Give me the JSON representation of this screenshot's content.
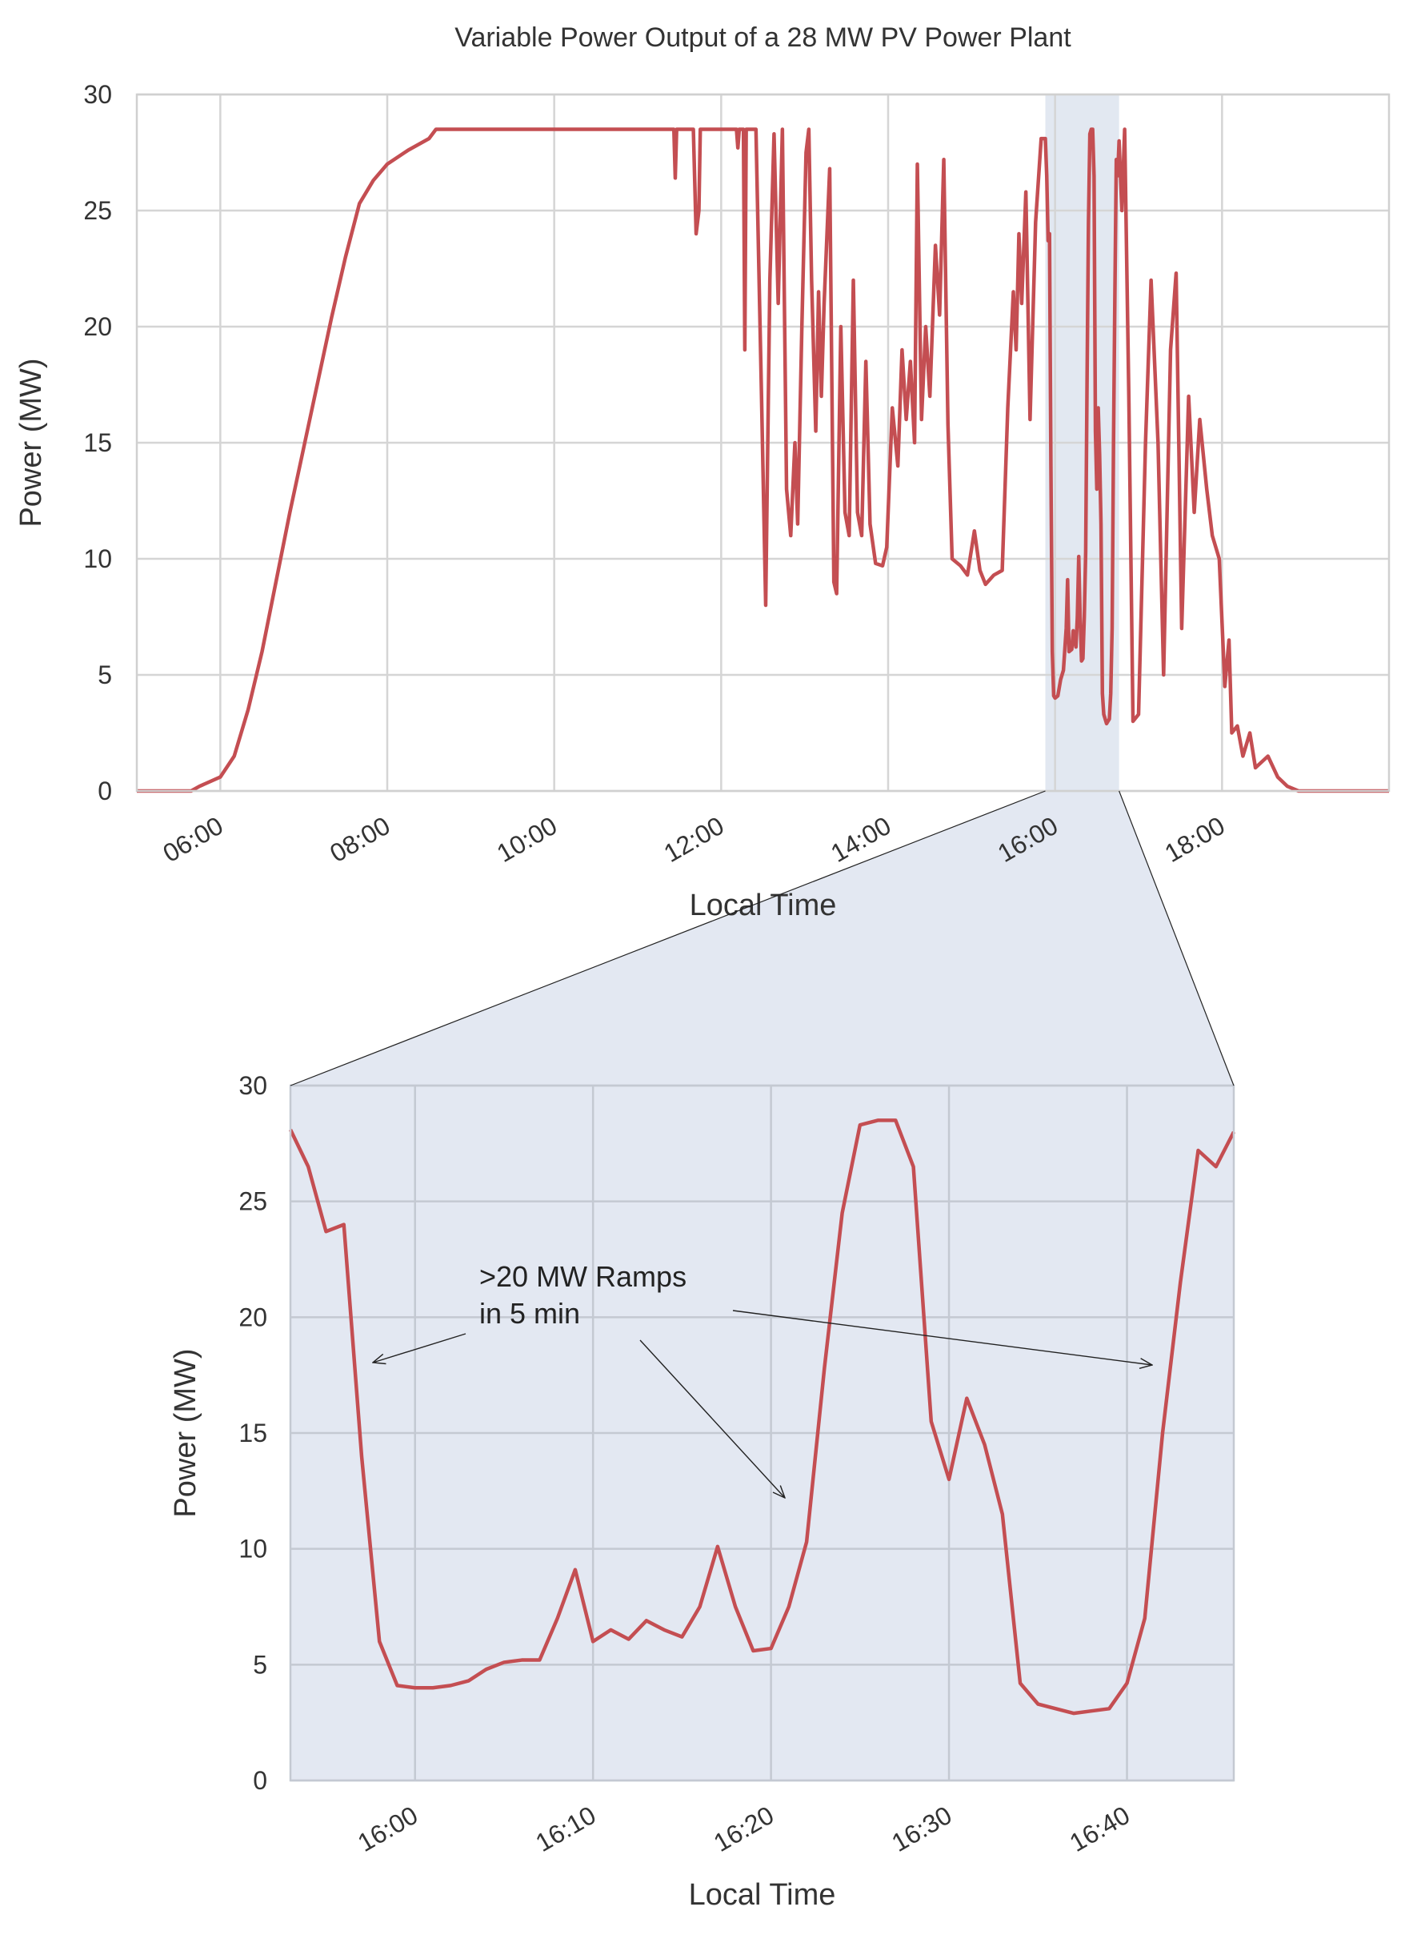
{
  "chart_data": [
    {
      "type": "line",
      "title": "Variable Power Output of a 28 MW PV Power Plant",
      "xlabel": "Local Time",
      "ylabel": "Power (MW)",
      "xlim": [
        "05:00",
        "20:00"
      ],
      "xticks": [
        "06:00",
        "08:00",
        "10:00",
        "12:00",
        "14:00",
        "16:00",
        "18:00"
      ],
      "ylim": [
        0,
        30
      ],
      "yticks": [
        0,
        5,
        10,
        15,
        20,
        25,
        30
      ],
      "grid": true,
      "color": "#c44e52",
      "x": [
        "05:00",
        "05:39",
        "05:45",
        "06:00",
        "06:10",
        "06:20",
        "06:30",
        "06:40",
        "06:50",
        "07:00",
        "07:10",
        "07:20",
        "07:30",
        "07:40",
        "07:50",
        "08:00",
        "08:15",
        "08:30",
        "08:35",
        "11:26",
        "11:27",
        "11:28",
        "11:40",
        "11:42",
        "11:44",
        "11:45",
        "12:11",
        "12:12",
        "12:13",
        "12:16",
        "12:17",
        "12:18",
        "12:25",
        "12:29",
        "12:32",
        "12:35",
        "12:38",
        "12:41",
        "12:44",
        "12:47",
        "12:50",
        "12:53",
        "12:55",
        "12:58",
        "13:01",
        "13:03",
        "13:05",
        "13:08",
        "13:10",
        "13:12",
        "13:14",
        "13:18",
        "13:21",
        "13:23",
        "13:26",
        "13:29",
        "13:32",
        "13:35",
        "13:38",
        "13:41",
        "13:44",
        "13:47",
        "13:51",
        "13:56",
        "13:59",
        "14:03",
        "14:07",
        "14:10",
        "14:13",
        "14:16",
        "14:19",
        "14:21",
        "14:24",
        "14:27",
        "14:30",
        "14:34",
        "14:37",
        "14:40",
        "14:43",
        "14:46",
        "14:52",
        "14:57",
        "15:02",
        "15:06",
        "15:10",
        "15:16",
        "15:22",
        "15:26",
        "15:30",
        "15:32",
        "15:34",
        "15:36",
        "15:39",
        "15:42",
        "15:46",
        "15:50",
        "15:53",
        "15:54",
        "15:55",
        "15:56",
        "15:57",
        "15:58",
        "15:59",
        "16:00",
        "16:02",
        "16:04",
        "16:06",
        "16:08",
        "16:09",
        "16:10",
        "16:12",
        "16:13",
        "16:15",
        "16:16",
        "16:17",
        "16:18",
        "16:19",
        "16:20",
        "16:21",
        "16:22",
        "16:23",
        "16:24",
        "16:25",
        "16:26",
        "16:27",
        "16:28",
        "16:29",
        "16:30",
        "16:31",
        "16:32",
        "16:33",
        "16:34",
        "16:35",
        "16:37",
        "16:39",
        "16:40",
        "16:41",
        "16:42",
        "16:43",
        "16:44",
        "16:45",
        "16:46",
        "16:48",
        "16:50",
        "16:53",
        "16:56",
        "17:00",
        "17:05",
        "17:09",
        "17:14",
        "17:18",
        "17:23",
        "17:27",
        "17:31",
        "17:36",
        "17:40",
        "17:44",
        "17:49",
        "17:53",
        "17:58",
        "18:02",
        "18:05",
        "18:07",
        "18:11",
        "18:15",
        "18:20",
        "18:24",
        "18:33",
        "18:40",
        "18:47",
        "18:55",
        "20:00"
      ],
      "values": [
        0,
        0,
        0.2,
        0.6,
        1.5,
        3.5,
        6,
        9,
        12,
        14.8,
        17.6,
        20.4,
        23,
        25.3,
        26.3,
        27,
        27.6,
        28.1,
        28.5,
        28.5,
        26.4,
        28.5,
        28.5,
        24,
        25,
        28.5,
        28.5,
        27.7,
        28.5,
        28.5,
        19,
        28.5,
        28.5,
        17,
        8,
        22,
        28.3,
        21,
        28.5,
        13,
        11,
        15,
        11.5,
        20,
        27.5,
        28.5,
        22,
        15.5,
        21.5,
        17,
        21,
        26.8,
        9,
        8.5,
        20,
        12,
        11,
        22,
        12,
        11,
        18.5,
        11.5,
        9.8,
        9.7,
        10.5,
        16.5,
        14,
        19,
        16,
        18.5,
        15,
        27,
        16,
        20,
        17,
        23.5,
        20.5,
        27.2,
        15.8,
        10,
        9.7,
        9.3,
        11.2,
        9.5,
        8.9,
        9.3,
        9.5,
        16.5,
        21.5,
        19,
        24,
        21,
        25.8,
        16,
        24.5,
        28.1,
        28.1,
        26.5,
        23.7,
        24,
        14,
        6,
        4.1,
        4,
        4.1,
        4.8,
        5.2,
        7,
        9.1,
        6,
        6.1,
        6.9,
        6.2,
        7.5,
        10.1,
        7.5,
        5.6,
        5.7,
        7.5,
        10.3,
        17.8,
        24.5,
        28.3,
        28.5,
        28.5,
        26.5,
        15.5,
        13,
        16.5,
        14.5,
        11.5,
        4.2,
        3.3,
        2.9,
        3.1,
        4.2,
        7,
        15,
        21.5,
        27.2,
        26.5,
        28,
        25,
        28.5,
        17,
        3,
        3.3,
        15,
        22,
        15,
        5,
        19,
        22.3,
        7,
        17,
        12,
        16,
        13,
        11,
        10,
        4.5,
        6.5,
        2.5,
        2.8,
        1.5,
        2.5,
        1,
        1.5,
        0.6,
        0.2,
        0,
        0
      ]
    },
    {
      "type": "line",
      "xlabel": "Local Time",
      "ylabel": "Power (MW)",
      "xlim": [
        "15:53",
        "16:46"
      ],
      "xticks": [
        "16:00",
        "16:10",
        "16:20",
        "16:30",
        "16:40"
      ],
      "ylim": [
        0,
        30
      ],
      "yticks": [
        0,
        5,
        10,
        15,
        20,
        25,
        30
      ],
      "grid": true,
      "color": "#c44e52",
      "annotation": [
        ">20 MW Ramps",
        "in 5 min"
      ],
      "x": [
        "15:53",
        "15:54",
        "15:55",
        "15:56",
        "15:57",
        "15:58",
        "15:59",
        "16:00",
        "16:01",
        "16:02",
        "16:03",
        "16:04",
        "16:05",
        "16:06",
        "16:07",
        "16:08",
        "16:09",
        "16:10",
        "16:11",
        "16:12",
        "16:13",
        "16:14",
        "16:15",
        "16:16",
        "16:17",
        "16:18",
        "16:19",
        "16:20",
        "16:21",
        "16:22",
        "16:23",
        "16:24",
        "16:25",
        "16:26",
        "16:27",
        "16:28",
        "16:29",
        "16:30",
        "16:31",
        "16:32",
        "16:33",
        "16:34",
        "16:35",
        "16:36",
        "16:37",
        "16:38",
        "16:39",
        "16:40",
        "16:41",
        "16:42",
        "16:43",
        "16:44",
        "16:45",
        "16:46"
      ],
      "values": [
        28.1,
        26.5,
        23.7,
        24,
        14,
        6,
        4.1,
        4,
        4,
        4.1,
        4.3,
        4.8,
        5.1,
        5.2,
        5.2,
        7,
        9.1,
        6,
        6.5,
        6.1,
        6.9,
        6.5,
        6.2,
        7.5,
        10.1,
        7.5,
        5.6,
        5.7,
        7.5,
        10.3,
        17.8,
        24.5,
        28.3,
        28.5,
        28.5,
        26.5,
        15.5,
        13,
        16.5,
        14.5,
        11.5,
        4.2,
        3.3,
        3.1,
        2.9,
        3,
        3.1,
        4.2,
        7,
        15,
        21.5,
        27.2,
        26.5,
        28
      ]
    }
  ]
}
